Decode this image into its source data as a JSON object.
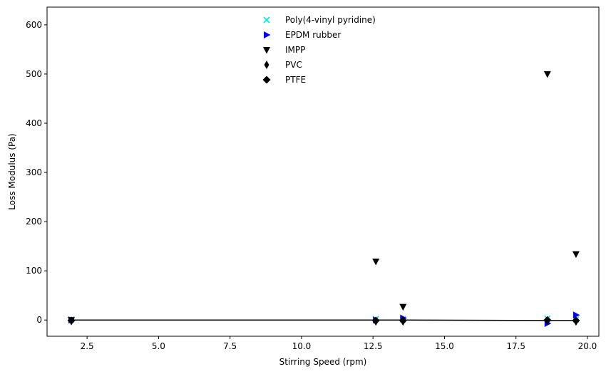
{
  "chart_data": {
    "type": "scatter",
    "xlabel": "Stirring Speed (rpm)",
    "ylabel": "Loss Modulus (Pa)",
    "xlim": [
      1.1,
      20.4
    ],
    "ylim": [
      -33,
      636
    ],
    "x_ticks": [
      2.5,
      5.0,
      7.5,
      10.0,
      12.5,
      15.0,
      17.5,
      20.0
    ],
    "x_tick_labels": [
      "2.5",
      "5.0",
      "7.5",
      "10.0",
      "12.5",
      "15.0",
      "17.5",
      "20.0"
    ],
    "y_ticks": [
      0,
      100,
      200,
      300,
      400,
      500,
      600
    ],
    "y_tick_labels": [
      "0",
      "100",
      "200",
      "300",
      "400",
      "500",
      "600"
    ],
    "grid": false,
    "legend_position": "top-center",
    "series": [
      {
        "name": "Poly(4-vinyl pyridine)",
        "marker": "x",
        "color": "#00e5e5",
        "points": [
          [
            1.95,
            1
          ],
          [
            12.6,
            2
          ],
          [
            13.55,
            1
          ],
          [
            18.6,
            3
          ],
          [
            19.6,
            1
          ]
        ]
      },
      {
        "name": "EPDM rubber",
        "marker": "triangle-right",
        "color": "#0000ff",
        "points": [
          [
            1.95,
            0
          ],
          [
            12.6,
            0
          ],
          [
            13.55,
            4
          ],
          [
            18.6,
            -7
          ],
          [
            19.6,
            10
          ]
        ]
      },
      {
        "name": "IMPP",
        "marker": "triangle-down",
        "color": "#000000",
        "points": [
          [
            1.95,
            0
          ],
          [
            12.6,
            119
          ],
          [
            13.55,
            27
          ],
          [
            18.6,
            500
          ],
          [
            19.6,
            134
          ]
        ]
      },
      {
        "name": "PVC",
        "marker": "thin-diamond",
        "color": "#000000",
        "points": [
          [
            1.95,
            -2
          ],
          [
            12.6,
            -3
          ],
          [
            13.55,
            -3
          ],
          [
            18.6,
            -2
          ],
          [
            19.6,
            -3
          ]
        ]
      },
      {
        "name": "PTFE",
        "marker": "diamond",
        "color": "#000000",
        "points": [
          [
            1.95,
            -1
          ],
          [
            12.6,
            -1
          ],
          [
            13.55,
            -1
          ],
          [
            18.6,
            0
          ],
          [
            19.6,
            -1
          ]
        ]
      }
    ],
    "trend_line": {
      "color": "#000000",
      "points": [
        [
          1.95,
          0
        ],
        [
          12.6,
          0
        ],
        [
          13.55,
          0
        ],
        [
          18.6,
          -1
        ],
        [
          19.6,
          -1
        ]
      ]
    }
  }
}
